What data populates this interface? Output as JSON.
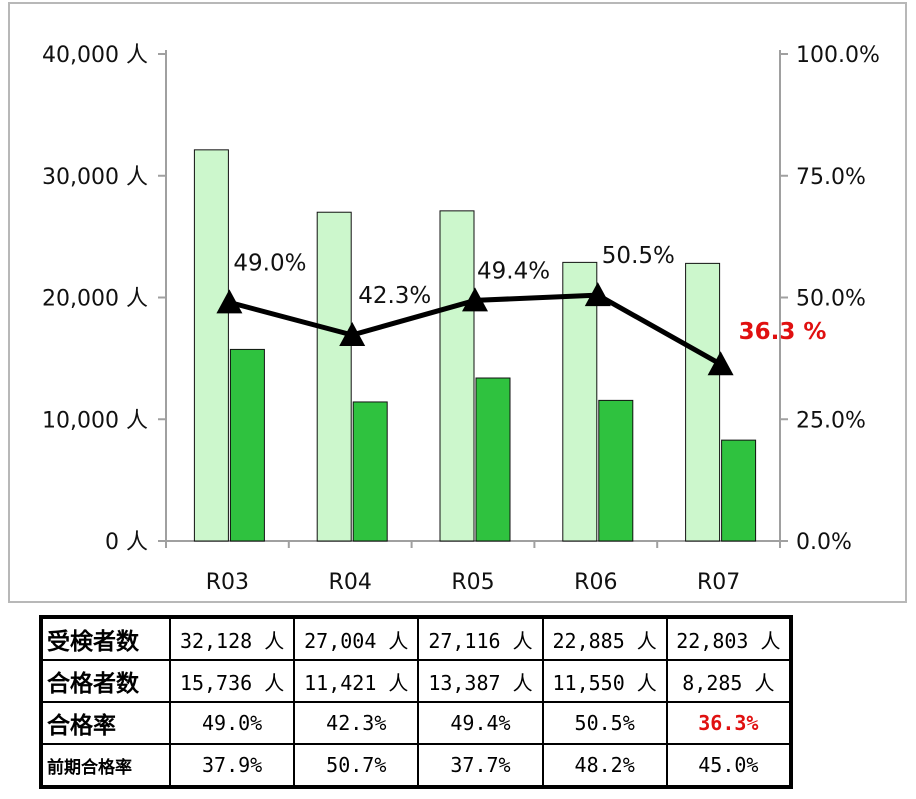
{
  "colors": {
    "applicants_bar": "#ccf7cc",
    "applicants_border": "#111111",
    "passers_bar": "#2fc23f",
    "line": "#000000",
    "highlight": "#e01010"
  },
  "chart_data": {
    "type": "bar",
    "categories": [
      "R03",
      "R04",
      "R05",
      "R06",
      "R07"
    ],
    "series": [
      {
        "values": [
          32128,
          27004,
          27116,
          22885,
          22803
        ]
      },
      {
        "values": [
          15736,
          11421,
          13387,
          11550,
          8285
        ]
      },
      {
        "type": "line",
        "marker": "triangle",
        "axis": "right",
        "values": [
          49.0,
          42.3,
          49.4,
          50.5,
          36.3
        ],
        "labels": [
          "49.0%",
          "42.3%",
          "49.4%",
          "50.5%",
          "36.3 %"
        ]
      }
    ],
    "y_left": {
      "ylim": [
        0,
        40000
      ],
      "ticks": [
        "0 人",
        "10,000 人",
        "20,000 人",
        "30,000 人",
        "40,000 人"
      ]
    },
    "y_right": {
      "ylim": [
        0,
        100
      ],
      "ticks": [
        "0.0%",
        "25.0%",
        "50.0%",
        "75.0%",
        "100.0%"
      ]
    },
    "grid": false,
    "highlight_index": 4
  },
  "table": {
    "rows": [
      {
        "label": "受検者数",
        "cells": [
          "32,128 人",
          "27,004 人",
          "27,116 人",
          "22,885 人",
          "22,803 人"
        ]
      },
      {
        "label": "合格者数",
        "cells": [
          "15,736 人",
          "11,421 人",
          "13,387 人",
          "11,550 人",
          "8,285 人"
        ]
      },
      {
        "label": "合格率",
        "cells": [
          "49.0%",
          "42.3%",
          "49.4%",
          "50.5%",
          "36.3%"
        ]
      },
      {
        "label": "前期合格率",
        "cells": [
          "37.9%",
          "50.7%",
          "37.7%",
          "48.2%",
          "45.0%"
        ]
      }
    ]
  }
}
